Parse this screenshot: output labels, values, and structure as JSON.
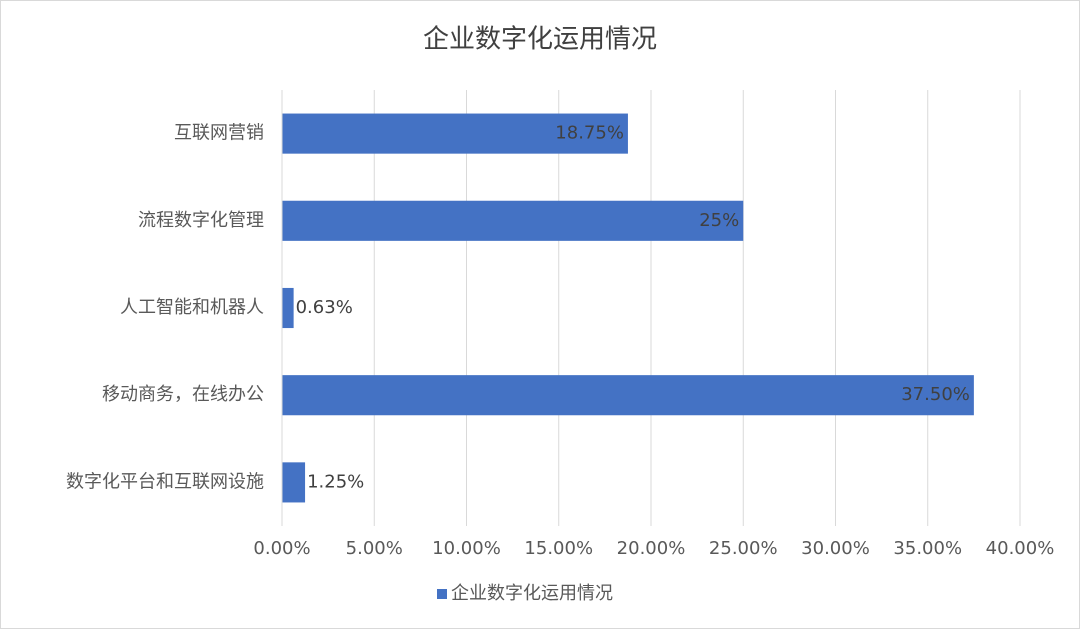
{
  "chart_data": {
    "type": "hbar",
    "title": "企业数字化运用情况",
    "categories": [
      "互联网营销",
      "流程数字化管理",
      "人工智能和机器人",
      "移动商务，在线办公",
      "数字化平台和互联网设施"
    ],
    "series": [
      {
        "name": "企业数字化运用情况",
        "color": "#4472c4",
        "values": [
          18.75,
          25,
          0.63,
          37.5,
          1.25
        ],
        "value_labels": [
          "18.75%",
          "25%",
          "0.63%",
          "37.50%",
          "1.25%"
        ]
      }
    ],
    "xlim": [
      0,
      40
    ],
    "xticks": [
      {
        "value": 0,
        "label": "0.00%"
      },
      {
        "value": 5,
        "label": "5.00%"
      },
      {
        "value": 10,
        "label": "10.00%"
      },
      {
        "value": 15,
        "label": "15.00%"
      },
      {
        "value": 20,
        "label": "20.00%"
      },
      {
        "value": 25,
        "label": "25.00%"
      },
      {
        "value": 30,
        "label": "30.00%"
      },
      {
        "value": 35,
        "label": "35.00%"
      },
      {
        "value": 40,
        "label": "40.00%"
      }
    ],
    "grid": true,
    "legend": "bottom"
  }
}
